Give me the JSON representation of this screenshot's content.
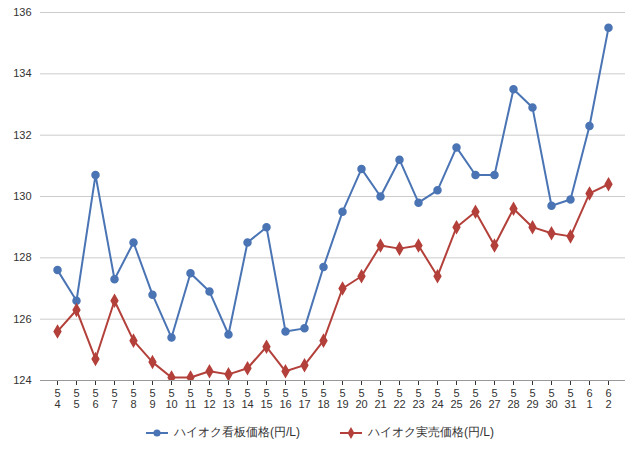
{
  "chart_data": {
    "type": "line",
    "categories": [
      "5\n4",
      "5\n5",
      "5\n6",
      "5\n7",
      "5\n8",
      "5\n9",
      "5\n10",
      "5\n11",
      "5\n12",
      "5\n13",
      "5\n14",
      "5\n15",
      "5\n16",
      "5\n17",
      "5\n18",
      "5\n19",
      "5\n20",
      "5\n21",
      "5\n22",
      "5\n23",
      "5\n24",
      "5\n25",
      "5\n26",
      "5\n27",
      "5\n28",
      "5\n29",
      "5\n30",
      "5\n31",
      "6\n1",
      "6\n2"
    ],
    "series": [
      {
        "name": "ハイオク看板価格(円/L)",
        "color": "#4a74b4",
        "marker": "circle",
        "values": [
          127.6,
          126.6,
          130.7,
          127.3,
          128.5,
          126.8,
          125.4,
          127.5,
          126.9,
          125.5,
          128.5,
          129.0,
          125.6,
          125.7,
          127.7,
          129.5,
          130.9,
          130.0,
          131.2,
          129.8,
          130.2,
          131.6,
          130.7,
          130.7,
          133.5,
          132.9,
          129.7,
          129.9,
          132.3,
          135.5
        ]
      },
      {
        "name": "ハイオク実売価格(円/L)",
        "color": "#b3403a",
        "marker": "diamond",
        "values": [
          125.6,
          126.3,
          124.7,
          126.6,
          125.3,
          124.6,
          124.1,
          124.1,
          124.3,
          124.2,
          124.4,
          125.1,
          124.3,
          124.5,
          125.3,
          127.0,
          127.4,
          128.4,
          128.3,
          128.4,
          127.4,
          129.0,
          129.5,
          128.4,
          129.6,
          129.0,
          128.8,
          128.7,
          130.1,
          130.4
        ]
      }
    ],
    "ylim": [
      124,
      136
    ],
    "yticks": [
      124,
      126,
      128,
      130,
      132,
      134,
      136
    ],
    "grid": true,
    "legend": "bottom"
  }
}
